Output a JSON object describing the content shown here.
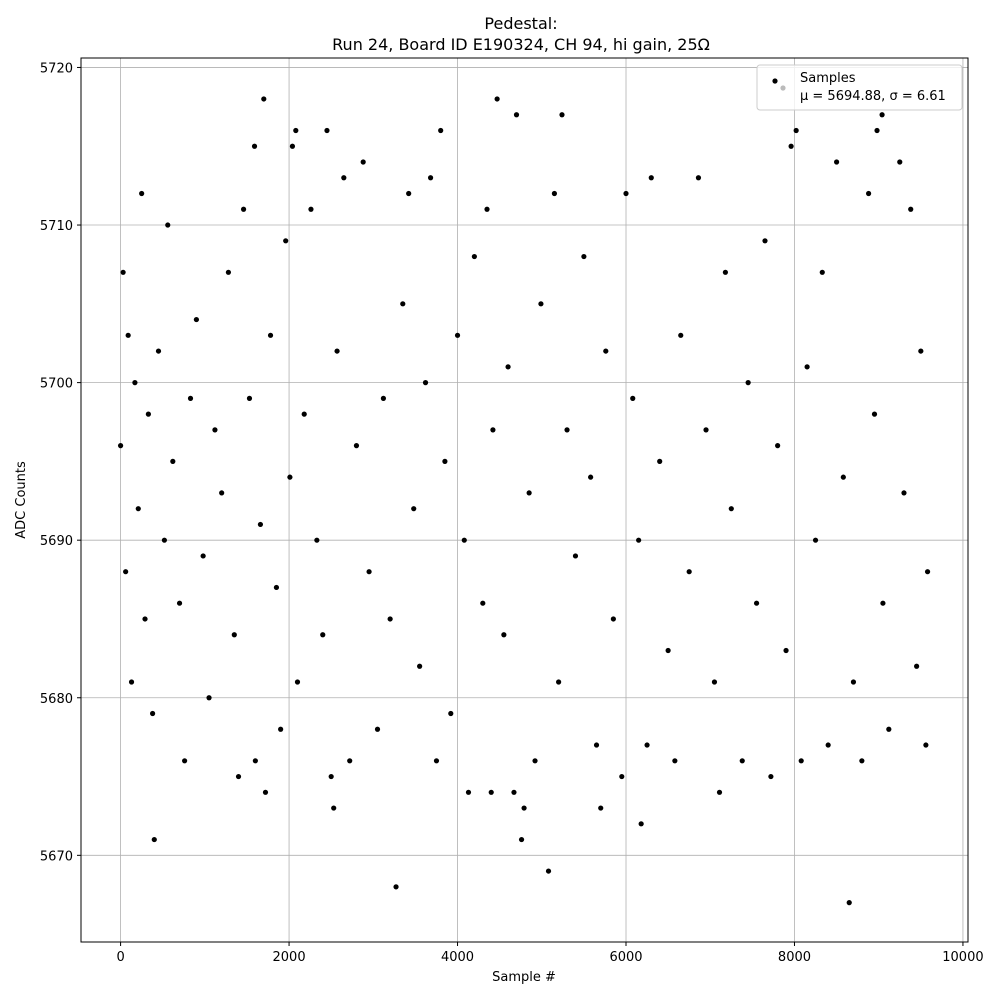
{
  "chart_data": {
    "type": "scatter",
    "title": "Pedestal:",
    "subtitle": "Run 24, Board ID E190324, CH 94, hi gain, 25Ω",
    "x_label": "Sample #",
    "y_label": "ADC Counts",
    "xlim": [
      -470,
      10060
    ],
    "ylim": [
      5664.5,
      5720.6
    ],
    "xticks": [
      0,
      2000,
      4000,
      6000,
      8000,
      10000
    ],
    "yticks": [
      5670,
      5680,
      5690,
      5700,
      5710,
      5720
    ],
    "grid": true,
    "legend_position": "upper right",
    "series": [
      {
        "name": "Samples",
        "legend_note": "μ = 5694.88, σ = 6.61",
        "color": "#000000",
        "x": [
          0,
          30,
          60,
          90,
          130,
          170,
          210,
          250,
          290,
          330,
          380,
          450,
          520,
          560,
          620,
          700,
          760,
          830,
          900,
          980,
          1050,
          1120,
          1200,
          1280,
          1350,
          1400,
          1460,
          1530,
          1600,
          1660,
          1780,
          1850,
          1900,
          1960,
          2010,
          2100,
          2180,
          2260,
          2330,
          2400,
          2500,
          2570,
          2650,
          2720,
          2800,
          2880,
          2950,
          3050,
          3120,
          3200,
          3350,
          3420,
          3480,
          3550,
          3620,
          3680,
          3750,
          3850,
          3920,
          4000,
          4080,
          4200,
          4300,
          4350,
          4420,
          4550,
          4600,
          4850,
          4920,
          4990,
          5150,
          5200,
          5300,
          5400,
          5500,
          5580,
          5650,
          5760,
          5850,
          5950,
          6000,
          6080,
          6150,
          6250,
          6300,
          6400,
          6500,
          6580,
          6650,
          6750,
          6860,
          6950,
          7050,
          7180,
          7250,
          7380,
          7450,
          7550,
          7650,
          7720,
          7800,
          7900,
          7960,
          8080,
          8150,
          8250,
          8330,
          8400,
          8500,
          8580,
          8700,
          8800,
          8880,
          8950,
          9050,
          9120,
          9250,
          9300,
          9380,
          9450,
          9500,
          9560,
          9580,
          400,
          3270,
          5080,
          8650,
          6180,
          1700,
          4470,
          4700,
          5240,
          9040,
          2450,
          2080,
          3800,
          8020,
          8980,
          1590,
          2040,
          1720,
          4130,
          4400,
          4670,
          7110,
          2530,
          4790,
          5700,
          4760
        ],
        "y": [
          5696,
          5707,
          5688,
          5703,
          5681,
          5700,
          5692,
          5712,
          5685,
          5698,
          5679,
          5702,
          5690,
          5710,
          5695,
          5686,
          5676,
          5699,
          5704,
          5689,
          5680,
          5697,
          5693,
          5707,
          5684,
          5675,
          5711,
          5699,
          5676,
          5691,
          5703,
          5687,
          5678,
          5709,
          5694,
          5681,
          5698,
          5711,
          5690,
          5684,
          5675,
          5702,
          5713,
          5676,
          5696,
          5714,
          5688,
          5678,
          5699,
          5685,
          5705,
          5712,
          5692,
          5682,
          5700,
          5713,
          5676,
          5695,
          5679,
          5703,
          5690,
          5708,
          5686,
          5711,
          5697,
          5684,
          5701,
          5693,
          5676,
          5705,
          5712,
          5681,
          5697,
          5689,
          5708,
          5694,
          5677,
          5702,
          5685,
          5675,
          5712,
          5699,
          5690,
          5677,
          5713,
          5695,
          5683,
          5676,
          5703,
          5688,
          5713,
          5697,
          5681,
          5707,
          5692,
          5676,
          5700,
          5686,
          5709,
          5675,
          5696,
          5683,
          5715,
          5676,
          5701,
          5690,
          5707,
          5677,
          5714,
          5694,
          5681,
          5676,
          5712,
          5698,
          5686,
          5678,
          5714,
          5693,
          5711,
          5682,
          5702,
          5677,
          5688,
          5671,
          5668,
          5669,
          5667,
          5672,
          5718,
          5718,
          5717,
          5717,
          5717,
          5716,
          5716,
          5716,
          5716,
          5716,
          5715,
          5715,
          5674,
          5674,
          5674,
          5674,
          5674,
          5673,
          5673,
          5673,
          5671
        ]
      }
    ]
  }
}
